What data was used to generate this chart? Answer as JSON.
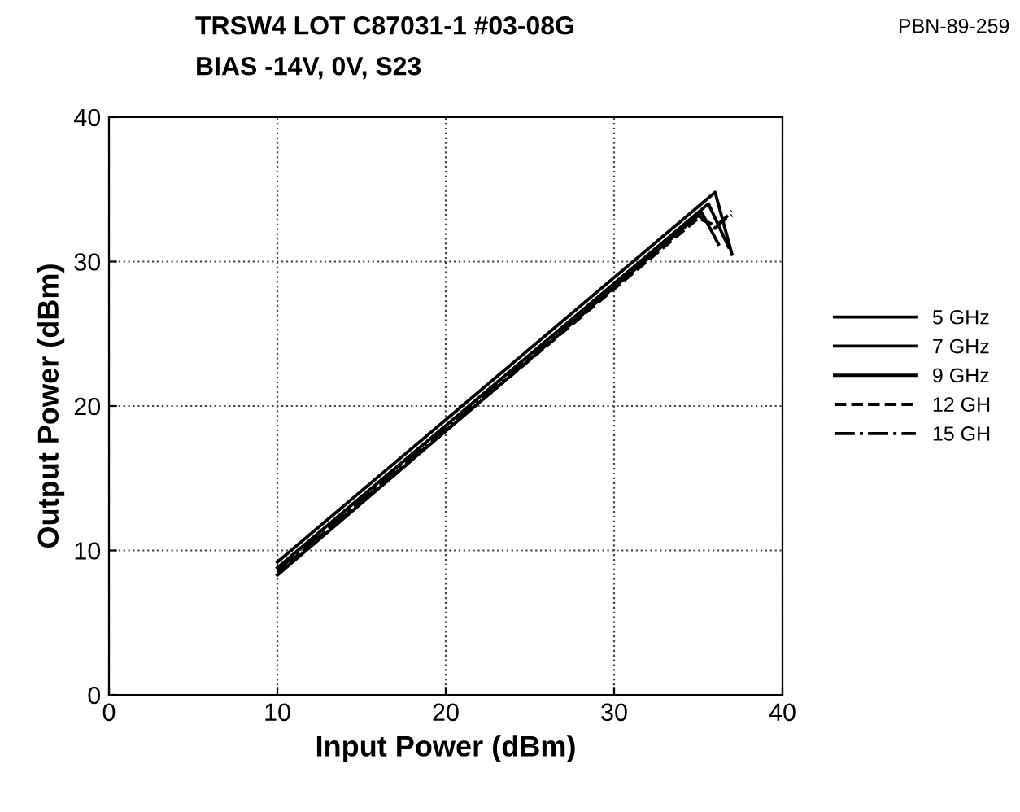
{
  "chart_data": {
    "type": "line",
    "title": "TRSW4 LOT C87031-1 #03-08G",
    "subtitle": "BIAS -14V, 0V, S23",
    "xlabel": "Input Power (dBm)",
    "ylabel": "Output Power (dBm)",
    "annotations": [
      "PBN-89-259"
    ],
    "xlim": [
      0,
      40
    ],
    "ylim": [
      0,
      40
    ],
    "xticks": [
      0,
      10,
      20,
      30,
      40
    ],
    "yticks": [
      0,
      10,
      20,
      30,
      40
    ],
    "grid": true,
    "legend": "right",
    "marker": "none",
    "series": [
      {
        "name": "5 GHz",
        "color": "#000000",
        "line_style": "solid",
        "x": [
          10,
          36,
          37
        ],
        "values": [
          9.2,
          34.8,
          30.5
        ]
      },
      {
        "name": "7 GHz",
        "color": "#000000",
        "line_style": "solid",
        "x": [
          10,
          35.6,
          36.8
        ],
        "values": [
          8.8,
          34,
          31
        ]
      },
      {
        "name": "9 GHz",
        "color": "#000000",
        "line_style": "solid",
        "x": [
          10,
          35.2,
          36.2
        ],
        "values": [
          8.3,
          33.4,
          31.2
        ]
      },
      {
        "name": "12 GH",
        "color": "#000000",
        "line_style": "dashed",
        "x": [
          10,
          35,
          36,
          37
        ],
        "values": [
          8.5,
          33,
          32.5,
          33.2
        ]
      },
      {
        "name": "15 GH",
        "color": "#000000",
        "line_style": "dashdot",
        "x": [
          10,
          35,
          36,
          37
        ],
        "values": [
          8.6,
          33.2,
          32.3,
          33.5
        ]
      }
    ]
  }
}
